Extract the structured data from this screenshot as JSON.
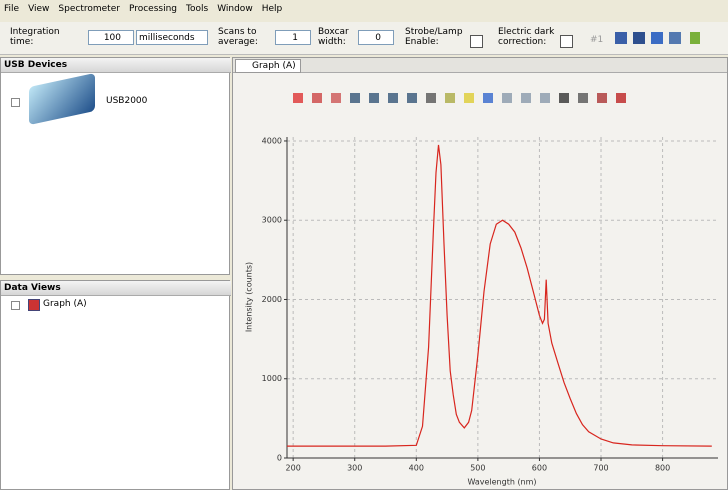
{
  "menu": [
    "File",
    "View",
    "Spectrometer",
    "Processing",
    "Tools",
    "Window",
    "Help"
  ],
  "toolbar": {
    "integration_label": "Integration time:",
    "integration_value": 100,
    "integration_unit": "milliseconds",
    "scans_label": "Scans to average:",
    "scans_value": 1,
    "boxcar_label": "Boxcar width:",
    "boxcar_value": 0,
    "strobe_label": "Strobe/Lamp Enable:",
    "dark_label": "Electric dark correction:",
    "device_index": "#1"
  },
  "panels": {
    "usb_title": "USB Devices",
    "device": "USB2000",
    "views_title": "Data Views",
    "view_item": "Graph (A)",
    "tab": "Graph (A)"
  },
  "chart_data": {
    "type": "line",
    "x_label": "Wavelength (nm)",
    "y_label": "Intensity (counts)",
    "x": [
      190,
      250,
      300,
      350,
      400,
      410,
      420,
      428,
      432,
      436,
      440,
      445,
      450,
      455,
      460,
      465,
      470,
      478,
      485,
      490,
      500,
      510,
      520,
      530,
      540,
      550,
      560,
      570,
      580,
      590,
      600,
      605,
      608,
      611,
      614,
      620,
      630,
      640,
      650,
      660,
      670,
      680,
      700,
      720,
      750,
      800,
      880
    ],
    "series": [
      {
        "name": "Graph (A)",
        "color": "#d8261e",
        "values": [
          150,
          150,
          150,
          150,
          160,
          400,
          1400,
          2900,
          3600,
          3950,
          3700,
          2700,
          1800,
          1100,
          800,
          550,
          450,
          380,
          450,
          600,
          1300,
          2100,
          2700,
          2950,
          3000,
          2950,
          2850,
          2650,
          2400,
          2100,
          1800,
          1700,
          1750,
          2250,
          1700,
          1450,
          1200,
          950,
          750,
          560,
          420,
          330,
          240,
          190,
          165,
          155,
          150
        ]
      }
    ],
    "xlim": [
      190,
      890
    ],
    "ylim": [
      0,
      4050
    ],
    "xticks": [
      200,
      300,
      400,
      500,
      600,
      700,
      800
    ],
    "yticks": [
      0,
      1000,
      2000,
      3000,
      4000
    ],
    "grid": true
  }
}
